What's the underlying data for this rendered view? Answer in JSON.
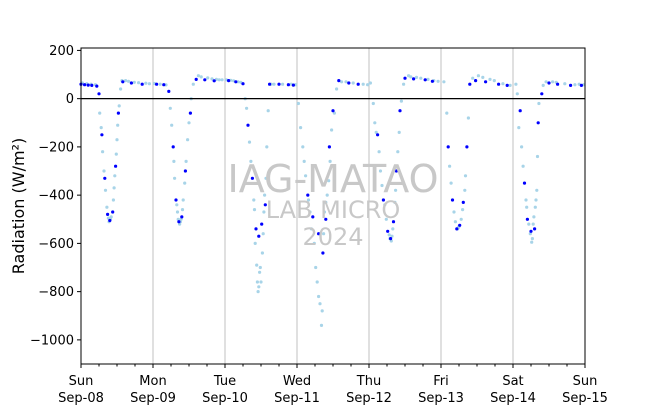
{
  "chart_data": {
    "type": "scatter",
    "ylabel": "Radiation (W/m²)",
    "xlabel": "",
    "ylim": [
      -1100,
      210
    ],
    "xlim": [
      0,
      7
    ],
    "yticks": [
      200,
      0,
      -200,
      -400,
      -600,
      -800,
      -1000
    ],
    "xticks": [
      {
        "x": 0,
        "top": "Sun",
        "bottom": "Sep-08"
      },
      {
        "x": 1,
        "top": "Mon",
        "bottom": "Sep-09"
      },
      {
        "x": 2,
        "top": "Tue",
        "bottom": "Sep-10"
      },
      {
        "x": 3,
        "top": "Wed",
        "bottom": "Sep-11"
      },
      {
        "x": 4,
        "top": "Thu",
        "bottom": "Sep-12"
      },
      {
        "x": 5,
        "top": "Fri",
        "bottom": "Sep-13"
      },
      {
        "x": 6,
        "top": "Sat",
        "bottom": "Sep-14"
      },
      {
        "x": 7,
        "top": "Sun",
        "bottom": "Sep-15"
      }
    ],
    "vertical_grid": true,
    "zero_line": true,
    "watermark": [
      "IAG-MATAO",
      "LAB MICRO",
      "2024"
    ],
    "series": [
      {
        "color": "#0000ff",
        "points": [
          [
            0.0,
            60
          ],
          [
            0.05,
            58
          ],
          [
            0.1,
            56
          ],
          [
            0.15,
            55
          ],
          [
            0.22,
            52
          ],
          [
            0.25,
            20
          ],
          [
            0.29,
            -150
          ],
          [
            0.33,
            -330
          ],
          [
            0.37,
            -480
          ],
          [
            0.4,
            -505
          ],
          [
            0.44,
            -470
          ],
          [
            0.48,
            -280
          ],
          [
            0.52,
            -60
          ],
          [
            0.58,
            70
          ],
          [
            0.7,
            65
          ],
          [
            0.85,
            60
          ],
          [
            1.05,
            60
          ],
          [
            1.15,
            58
          ],
          [
            1.22,
            30
          ],
          [
            1.28,
            -200
          ],
          [
            1.32,
            -420
          ],
          [
            1.36,
            -510
          ],
          [
            1.4,
            -490
          ],
          [
            1.45,
            -300
          ],
          [
            1.52,
            -60
          ],
          [
            1.6,
            80
          ],
          [
            1.72,
            78
          ],
          [
            1.85,
            74
          ],
          [
            2.05,
            75
          ],
          [
            2.15,
            70
          ],
          [
            2.25,
            62
          ],
          [
            2.32,
            -110
          ],
          [
            2.38,
            -330
          ],
          [
            2.43,
            -540
          ],
          [
            2.47,
            -570
          ],
          [
            2.51,
            -520
          ],
          [
            2.56,
            -440
          ],
          [
            2.62,
            60
          ],
          [
            2.75,
            60
          ],
          [
            2.88,
            58
          ],
          [
            2.95,
            56
          ],
          [
            3.15,
            -400
          ],
          [
            3.22,
            -490
          ],
          [
            3.3,
            -560
          ],
          [
            3.36,
            -640
          ],
          [
            3.4,
            -500
          ],
          [
            3.45,
            -200
          ],
          [
            3.5,
            -50
          ],
          [
            3.58,
            75
          ],
          [
            3.72,
            65
          ],
          [
            3.85,
            60
          ],
          [
            4.12,
            -150
          ],
          [
            4.2,
            -420
          ],
          [
            4.26,
            -550
          ],
          [
            4.3,
            -580
          ],
          [
            4.34,
            -510
          ],
          [
            4.38,
            -300
          ],
          [
            4.43,
            -50
          ],
          [
            4.5,
            85
          ],
          [
            4.62,
            82
          ],
          [
            4.78,
            78
          ],
          [
            4.88,
            72
          ],
          [
            5.1,
            -200
          ],
          [
            5.16,
            -420
          ],
          [
            5.22,
            -540
          ],
          [
            5.26,
            -525
          ],
          [
            5.31,
            -430
          ],
          [
            5.36,
            -200
          ],
          [
            5.4,
            60
          ],
          [
            5.48,
            75
          ],
          [
            5.62,
            70
          ],
          [
            5.8,
            60
          ],
          [
            5.92,
            55
          ],
          [
            6.1,
            -50
          ],
          [
            6.16,
            -350
          ],
          [
            6.2,
            -500
          ],
          [
            6.25,
            -550
          ],
          [
            6.3,
            -540
          ],
          [
            6.35,
            -100
          ],
          [
            6.4,
            20
          ],
          [
            6.5,
            65
          ],
          [
            6.62,
            60
          ],
          [
            6.8,
            55
          ],
          [
            6.95,
            55
          ]
        ]
      },
      {
        "color": "#a8d4e8",
        "points": [
          [
            0.02,
            65
          ],
          [
            0.08,
            62
          ],
          [
            0.14,
            60
          ],
          [
            0.2,
            58
          ],
          [
            0.26,
            -60
          ],
          [
            0.28,
            -120
          ],
          [
            0.3,
            -220
          ],
          [
            0.32,
            -300
          ],
          [
            0.34,
            -380
          ],
          [
            0.36,
            -450
          ],
          [
            0.38,
            -495
          ],
          [
            0.39,
            -510
          ],
          [
            0.41,
            -500
          ],
          [
            0.42,
            -490
          ],
          [
            0.45,
            -420
          ],
          [
            0.46,
            -370
          ],
          [
            0.47,
            -320
          ],
          [
            0.49,
            -230
          ],
          [
            0.5,
            -170
          ],
          [
            0.51,
            -110
          ],
          [
            0.53,
            -30
          ],
          [
            0.55,
            40
          ],
          [
            0.57,
            75
          ],
          [
            0.62,
            75
          ],
          [
            0.66,
            72
          ],
          [
            0.74,
            68
          ],
          [
            0.8,
            66
          ],
          [
            0.9,
            64
          ],
          [
            0.95,
            62
          ],
          [
            1.02,
            63
          ],
          [
            1.1,
            60
          ],
          [
            1.18,
            57
          ],
          [
            1.24,
            -40
          ],
          [
            1.26,
            -110
          ],
          [
            1.29,
            -260
          ],
          [
            1.3,
            -330
          ],
          [
            1.33,
            -440
          ],
          [
            1.34,
            -470
          ],
          [
            1.35,
            -500
          ],
          [
            1.37,
            -520
          ],
          [
            1.38,
            -510
          ],
          [
            1.39,
            -500
          ],
          [
            1.41,
            -460
          ],
          [
            1.42,
            -420
          ],
          [
            1.44,
            -350
          ],
          [
            1.46,
            -260
          ],
          [
            1.48,
            -170
          ],
          [
            1.5,
            -100
          ],
          [
            1.53,
            0
          ],
          [
            1.56,
            60
          ],
          [
            1.63,
            95
          ],
          [
            1.67,
            90
          ],
          [
            1.76,
            86
          ],
          [
            1.82,
            82
          ],
          [
            1.88,
            80
          ],
          [
            1.92,
            78
          ],
          [
            1.96,
            78
          ],
          [
            2.02,
            78
          ],
          [
            2.08,
            76
          ],
          [
            2.12,
            74
          ],
          [
            2.18,
            70
          ],
          [
            2.22,
            68
          ],
          [
            2.28,
            0
          ],
          [
            2.3,
            -40
          ],
          [
            2.34,
            -180
          ],
          [
            2.36,
            -260
          ],
          [
            2.4,
            -420
          ],
          [
            2.41,
            -460
          ],
          [
            2.42,
            -600
          ],
          [
            2.44,
            -690
          ],
          [
            2.45,
            -760
          ],
          [
            2.46,
            -800
          ],
          [
            2.47,
            -780
          ],
          [
            2.48,
            -720
          ],
          [
            2.49,
            -700
          ],
          [
            2.5,
            -760
          ],
          [
            2.52,
            -640
          ],
          [
            2.53,
            -560
          ],
          [
            2.54,
            -470
          ],
          [
            2.55,
            -400
          ],
          [
            2.57,
            -330
          ],
          [
            2.58,
            -200
          ],
          [
            2.6,
            -50
          ],
          [
            2.64,
            60
          ],
          [
            2.68,
            60
          ],
          [
            2.8,
            60
          ],
          [
            2.92,
            60
          ],
          [
            2.98,
            58
          ],
          [
            3.02,
            -20
          ],
          [
            3.05,
            -120
          ],
          [
            3.08,
            -200
          ],
          [
            3.1,
            -260
          ],
          [
            3.12,
            -320
          ],
          [
            3.16,
            -420
          ],
          [
            3.18,
            -470
          ],
          [
            3.2,
            -540
          ],
          [
            3.24,
            -600
          ],
          [
            3.26,
            -700
          ],
          [
            3.28,
            -760
          ],
          [
            3.3,
            -820
          ],
          [
            3.32,
            -850
          ],
          [
            3.34,
            -940
          ],
          [
            3.35,
            -880
          ],
          [
            3.37,
            -560
          ],
          [
            3.38,
            -470
          ],
          [
            3.4,
            -430
          ],
          [
            3.42,
            -400
          ],
          [
            3.44,
            -340
          ],
          [
            3.46,
            -260
          ],
          [
            3.48,
            -130
          ],
          [
            3.52,
            -60
          ],
          [
            3.55,
            40
          ],
          [
            3.62,
            70
          ],
          [
            3.68,
            70
          ],
          [
            3.78,
            65
          ],
          [
            3.92,
            60
          ],
          [
            3.98,
            58
          ],
          [
            4.02,
            65
          ],
          [
            4.06,
            -20
          ],
          [
            4.08,
            -100
          ],
          [
            4.1,
            -140
          ],
          [
            4.14,
            -220
          ],
          [
            4.16,
            -300
          ],
          [
            4.18,
            -360
          ],
          [
            4.22,
            -440
          ],
          [
            4.24,
            -500
          ],
          [
            4.28,
            -565
          ],
          [
            4.29,
            -580
          ],
          [
            4.31,
            -590
          ],
          [
            4.32,
            -570
          ],
          [
            4.33,
            -540
          ],
          [
            4.36,
            -430
          ],
          [
            4.37,
            -380
          ],
          [
            4.4,
            -220
          ],
          [
            4.42,
            -140
          ],
          [
            4.45,
            -10
          ],
          [
            4.48,
            60
          ],
          [
            4.55,
            95
          ],
          [
            4.58,
            90
          ],
          [
            4.66,
            88
          ],
          [
            4.72,
            85
          ],
          [
            4.82,
            80
          ],
          [
            4.9,
            75
          ],
          [
            4.96,
            72
          ],
          [
            5.04,
            70
          ],
          [
            5.08,
            -60
          ],
          [
            5.12,
            -280
          ],
          [
            5.14,
            -350
          ],
          [
            5.18,
            -470
          ],
          [
            5.2,
            -510
          ],
          [
            5.23,
            -540
          ],
          [
            5.24,
            -535
          ],
          [
            5.25,
            -530
          ],
          [
            5.28,
            -500
          ],
          [
            5.3,
            -460
          ],
          [
            5.33,
            -380
          ],
          [
            5.34,
            -320
          ],
          [
            5.38,
            -80
          ],
          [
            5.44,
            85
          ],
          [
            5.52,
            95
          ],
          [
            5.58,
            88
          ],
          [
            5.68,
            80
          ],
          [
            5.74,
            75
          ],
          [
            5.86,
            62
          ],
          [
            5.96,
            55
          ],
          [
            6.04,
            60
          ],
          [
            6.06,
            20
          ],
          [
            6.08,
            -120
          ],
          [
            6.12,
            -200
          ],
          [
            6.14,
            -280
          ],
          [
            6.18,
            -420
          ],
          [
            6.19,
            -450
          ],
          [
            6.22,
            -520
          ],
          [
            6.24,
            -560
          ],
          [
            6.26,
            -595
          ],
          [
            6.27,
            -580
          ],
          [
            6.28,
            -520
          ],
          [
            6.29,
            -490
          ],
          [
            6.31,
            -450
          ],
          [
            6.32,
            -420
          ],
          [
            6.33,
            -380
          ],
          [
            6.34,
            -240
          ],
          [
            6.36,
            -20
          ],
          [
            6.42,
            55
          ],
          [
            6.46,
            70
          ],
          [
            6.55,
            70
          ],
          [
            6.6,
            68
          ],
          [
            6.72,
            62
          ],
          [
            6.86,
            58
          ],
          [
            6.92,
            60
          ],
          [
            6.98,
            58
          ]
        ]
      }
    ]
  }
}
